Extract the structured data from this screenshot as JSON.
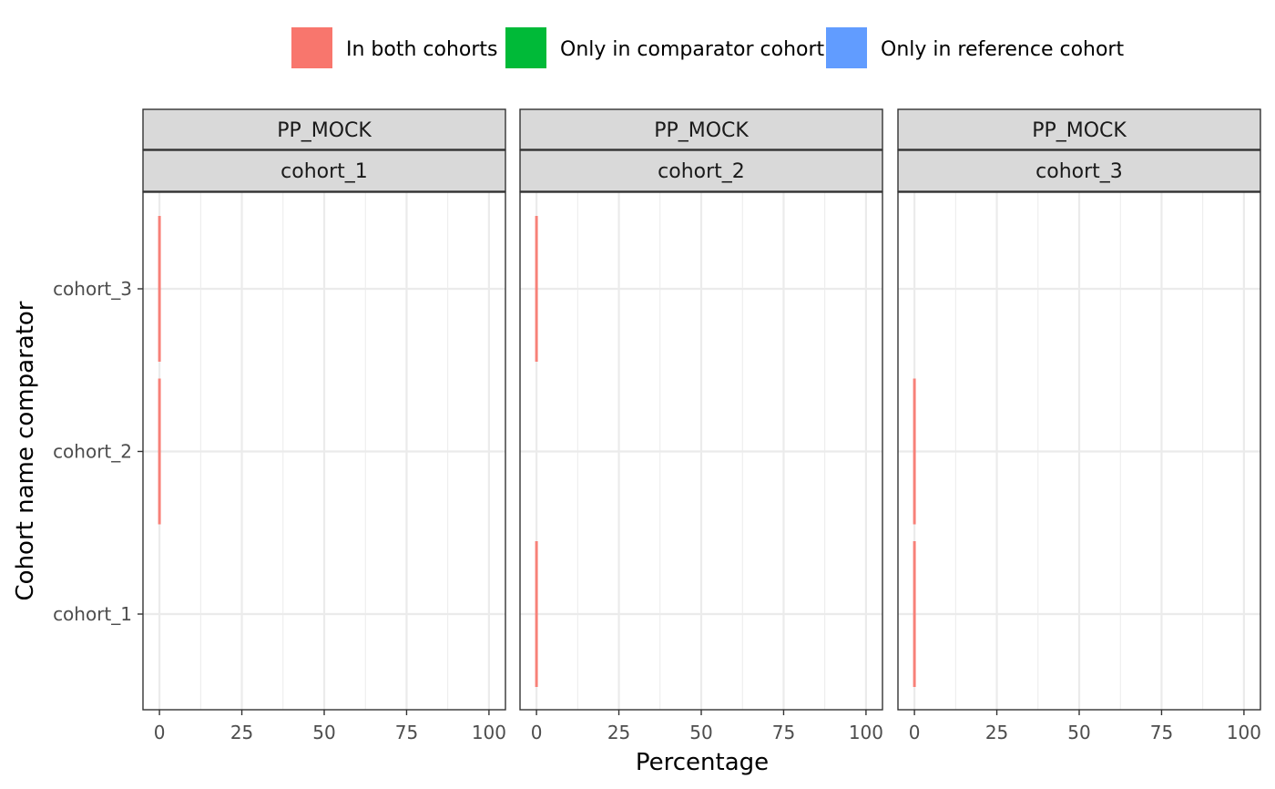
{
  "chart_data": {
    "type": "bar",
    "orientation": "horizontal",
    "stacked": true,
    "xlabel": "Percentage",
    "ylabel": "Cohort name comparator",
    "xlim": [
      0,
      100
    ],
    "x_ticks": [
      0,
      25,
      50,
      75,
      100
    ],
    "grid": true,
    "legend_position": "top",
    "legend": [
      {
        "name": "In both cohorts",
        "color": "#F8766D"
      },
      {
        "name": "Only in comparator cohort",
        "color": "#00BA38"
      },
      {
        "name": "Only in reference cohort",
        "color": "#619CFF"
      }
    ],
    "categories": [
      "cohort_1",
      "cohort_2",
      "cohort_3"
    ],
    "facets": [
      {
        "strip_top": "PP_MOCK",
        "strip_bottom": "cohort_1",
        "bars": [
          {
            "category": "cohort_2",
            "series": "In both cohorts",
            "value": 0
          },
          {
            "category": "cohort_3",
            "series": "In both cohorts",
            "value": 0
          }
        ]
      },
      {
        "strip_top": "PP_MOCK",
        "strip_bottom": "cohort_2",
        "bars": [
          {
            "category": "cohort_1",
            "series": "In both cohorts",
            "value": 0
          },
          {
            "category": "cohort_3",
            "series": "In both cohorts",
            "value": 0
          }
        ]
      },
      {
        "strip_top": "PP_MOCK",
        "strip_bottom": "cohort_3",
        "bars": [
          {
            "category": "cohort_1",
            "series": "In both cohorts",
            "value": 0
          },
          {
            "category": "cohort_2",
            "series": "In both cohorts",
            "value": 0
          }
        ]
      }
    ]
  }
}
